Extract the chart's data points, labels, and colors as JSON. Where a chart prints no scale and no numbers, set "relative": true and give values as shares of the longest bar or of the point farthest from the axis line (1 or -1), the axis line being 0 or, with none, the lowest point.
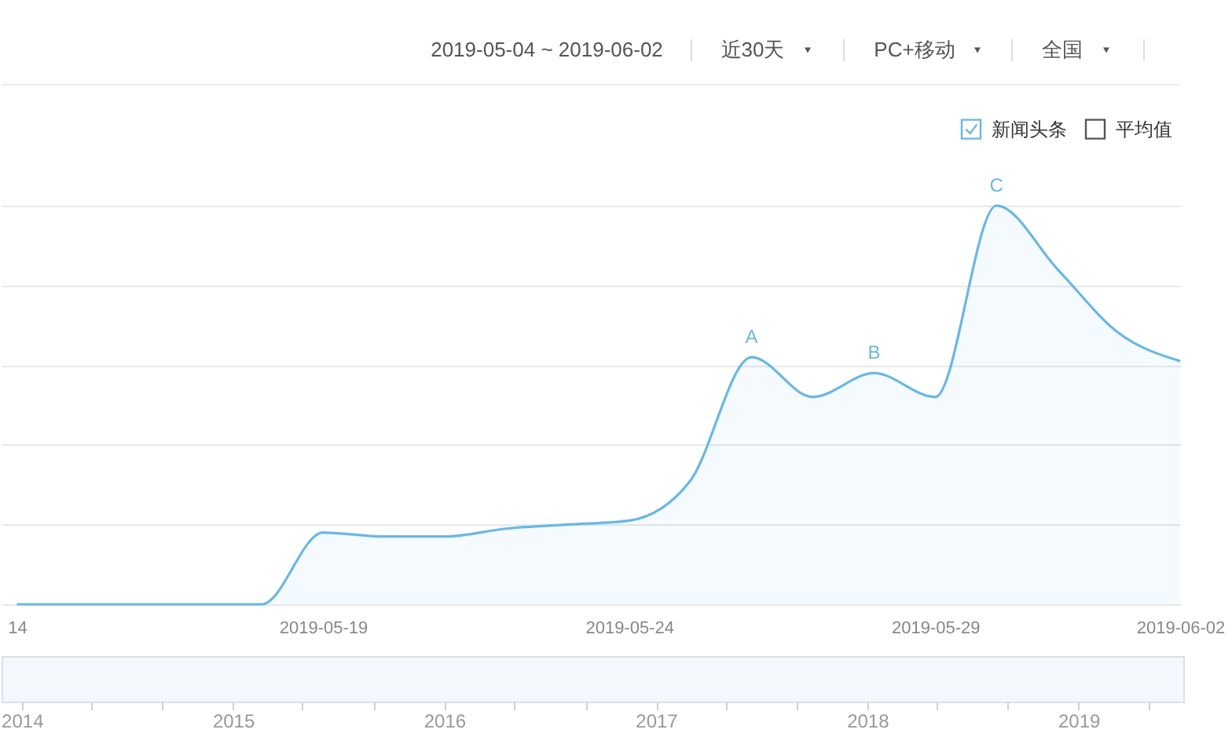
{
  "chart_data": {
    "type": "area",
    "relative": true,
    "x": [
      "2019-05-14",
      "2019-05-15",
      "2019-05-16",
      "2019-05-17",
      "2019-05-18",
      "2019-05-19",
      "2019-05-20",
      "2019-05-21",
      "2019-05-22",
      "2019-05-23",
      "2019-05-24",
      "2019-05-25",
      "2019-05-26",
      "2019-05-27",
      "2019-05-28",
      "2019-05-29",
      "2019-05-30",
      "2019-05-31",
      "2019-06-01",
      "2019-06-02"
    ],
    "series": [
      {
        "name": "新闻头条",
        "color": "#6ab7e3",
        "values": [
          0,
          0,
          0,
          0,
          0,
          0.18,
          0.17,
          0.17,
          0.19,
          0.2,
          0.21,
          0.31,
          0.62,
          0.52,
          0.58,
          0.52,
          1,
          0.84,
          0.68,
          0.61
        ]
      },
      {
        "name": "平均值",
        "values": [
          null,
          null,
          null,
          null,
          null,
          null,
          null,
          null,
          null,
          null,
          null,
          null,
          null,
          null,
          null,
          null,
          null,
          null,
          null,
          null
        ]
      }
    ],
    "xlim": [
      "2019-05-13T18:00",
      "2019-06-02"
    ],
    "xticks": [
      {
        "value": "2019-05-14",
        "label": "14"
      },
      "2019-05-19",
      "2019-05-24",
      "2019-05-29",
      "2019-06-02"
    ],
    "x2lim": [
      "2013-11-27",
      "2019-07-01"
    ],
    "x2ticks": [
      "2014",
      "2015",
      "2016",
      "2017",
      "2018",
      "2019"
    ],
    "grid": "y",
    "legend": "top right",
    "annotations": [
      "2019-05-04 ~ 2019-06-02",
      "近30天",
      "PC+移动",
      "全国",
      {
        "text": "A",
        "x": "2019-05-26",
        "y": 0.62
      },
      {
        "text": "B",
        "x": "2019-05-28",
        "y": 0.58
      },
      {
        "text": "C",
        "x": "2019-05-30",
        "y": 1
      }
    ]
  }
}
